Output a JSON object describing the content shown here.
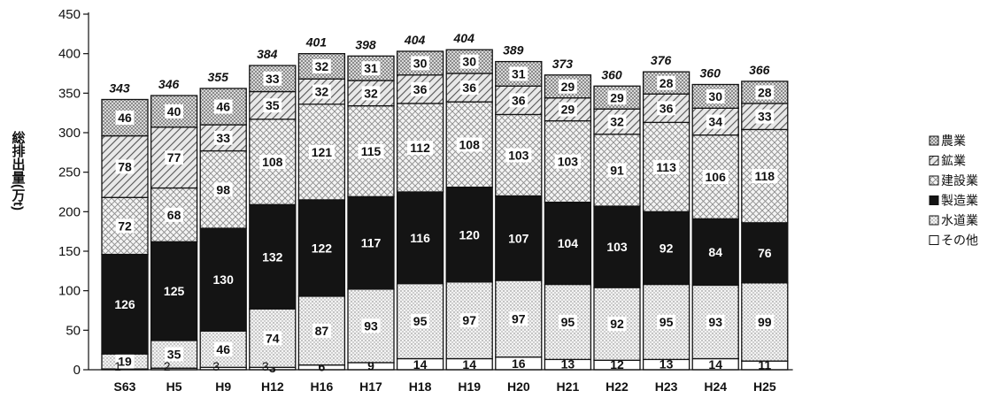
{
  "chart_data": {
    "type": "bar",
    "stacked": true,
    "ylabel": "総排出量(万t)",
    "ylim": [
      0,
      450
    ],
    "yticks": [
      0,
      50,
      100,
      150,
      200,
      250,
      300,
      350,
      400,
      450
    ],
    "categories": [
      "S63",
      "H5",
      "H9",
      "H12",
      "H16",
      "H17",
      "H18",
      "H19",
      "H20",
      "H21",
      "H22",
      "H23",
      "H24",
      "H25"
    ],
    "index_labels": [
      "1",
      "2",
      "3",
      "3",
      "",
      "",
      "",
      "",
      "",
      "",
      "",
      "",
      "",
      ""
    ],
    "totals": [
      343,
      346,
      355,
      384,
      401,
      398,
      404,
      404,
      389,
      373,
      360,
      376,
      360,
      366
    ],
    "series": [
      {
        "name": "その他",
        "key": "sonota",
        "values": [
          1,
          2,
          3,
          3,
          6,
          9,
          14,
          14,
          16,
          13,
          12,
          13,
          14,
          11
        ],
        "show_labels": [
          false,
          false,
          false,
          true,
          true,
          true,
          true,
          true,
          true,
          true,
          true,
          true,
          true,
          true
        ]
      },
      {
        "name": "水道業",
        "key": "suido",
        "values": [
          19,
          35,
          46,
          74,
          87,
          93,
          95,
          97,
          97,
          95,
          92,
          95,
          93,
          99
        ],
        "show_labels": [
          true,
          true,
          true,
          true,
          true,
          true,
          true,
          true,
          true,
          true,
          true,
          true,
          true,
          true
        ]
      },
      {
        "name": "製造業",
        "key": "seizo",
        "values": [
          126,
          125,
          130,
          132,
          122,
          117,
          116,
          120,
          107,
          104,
          103,
          92,
          84,
          76
        ],
        "show_labels": [
          true,
          true,
          true,
          true,
          true,
          true,
          true,
          true,
          true,
          true,
          true,
          true,
          true,
          true
        ]
      },
      {
        "name": "建設業",
        "key": "kensetsu",
        "values": [
          72,
          68,
          98,
          108,
          121,
          115,
          112,
          108,
          103,
          103,
          91,
          113,
          106,
          118
        ],
        "show_labels": [
          true,
          true,
          true,
          true,
          true,
          true,
          true,
          true,
          true,
          true,
          true,
          true,
          true,
          true
        ]
      },
      {
        "name": "鉱業",
        "key": "kogyo",
        "values": [
          78,
          77,
          33,
          35,
          32,
          32,
          36,
          36,
          36,
          29,
          32,
          36,
          34,
          33
        ],
        "show_labels": [
          true,
          true,
          true,
          true,
          true,
          true,
          true,
          true,
          true,
          true,
          true,
          true,
          true,
          true
        ]
      },
      {
        "name": "農業",
        "key": "nogyo",
        "values": [
          46,
          40,
          46,
          33,
          32,
          31,
          30,
          30,
          31,
          29,
          29,
          28,
          30,
          28
        ],
        "show_labels": [
          true,
          true,
          true,
          true,
          true,
          true,
          true,
          true,
          true,
          true,
          true,
          true,
          true,
          true
        ]
      }
    ],
    "legend": {
      "placement": "right",
      "entries": [
        "農業",
        "鉱業",
        "建設業",
        "製造業",
        "水道業",
        "その他"
      ]
    },
    "grid": false
  },
  "colors": {
    "axis": "#111111",
    "bar_outline": "#111111",
    "seizo_fill": "#141414",
    "white": "#ffffff"
  }
}
